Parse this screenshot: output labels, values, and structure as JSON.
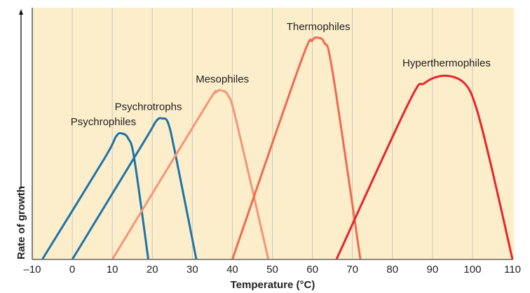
{
  "chart_data": {
    "type": "line",
    "title": "",
    "xlabel": "Temperature (°C)",
    "ylabel": "Rate of growth",
    "xlim": [
      -10,
      110
    ],
    "ylim": [
      0,
      100
    ],
    "x_ticks": [
      "–10",
      "0",
      "10",
      "20",
      "30",
      "40",
      "50",
      "60",
      "70",
      "80",
      "90",
      "100",
      "110"
    ],
    "x_tick_values": [
      -10,
      0,
      10,
      20,
      30,
      40,
      50,
      60,
      70,
      80,
      90,
      100,
      110
    ],
    "grid": "vertical",
    "background": "#fdeecb",
    "series": [
      {
        "name": "Psychrophiles",
        "color": "#1b74a8",
        "points": [
          [
            -7.5,
            0
          ],
          [
            8,
            40
          ],
          [
            11,
            49
          ],
          [
            12.5,
            50
          ],
          [
            14,
            48
          ],
          [
            15.5,
            40
          ],
          [
            19,
            0
          ]
        ]
      },
      {
        "name": "Psychrotrophs",
        "color": "#1b74a8",
        "points": [
          [
            0,
            0
          ],
          [
            18,
            47
          ],
          [
            21,
            55
          ],
          [
            22.5,
            56
          ],
          [
            24,
            54
          ],
          [
            26,
            40
          ],
          [
            31,
            0
          ]
        ]
      },
      {
        "name": "Mesophiles",
        "color": "#f59479",
        "points": [
          [
            10,
            0
          ],
          [
            33,
            60
          ],
          [
            36,
            66.5
          ],
          [
            37.5,
            67
          ],
          [
            39,
            65
          ],
          [
            41,
            55
          ],
          [
            49,
            0
          ]
        ]
      },
      {
        "name": "Thermophiles",
        "color": "#ef6a50",
        "points": [
          [
            40,
            0
          ],
          [
            57,
            78
          ],
          [
            60,
            87
          ],
          [
            61.5,
            88
          ],
          [
            63,
            86
          ],
          [
            65,
            75
          ],
          [
            72,
            0
          ]
        ]
      },
      {
        "name": "Hyperthermophiles",
        "color": "#e8242a",
        "points": [
          [
            66,
            0
          ],
          [
            84,
            62
          ],
          [
            88,
            70
          ],
          [
            93,
            73
          ],
          [
            98,
            70
          ],
          [
            101,
            60
          ],
          [
            105,
            35
          ],
          [
            110,
            0
          ]
        ]
      }
    ]
  }
}
